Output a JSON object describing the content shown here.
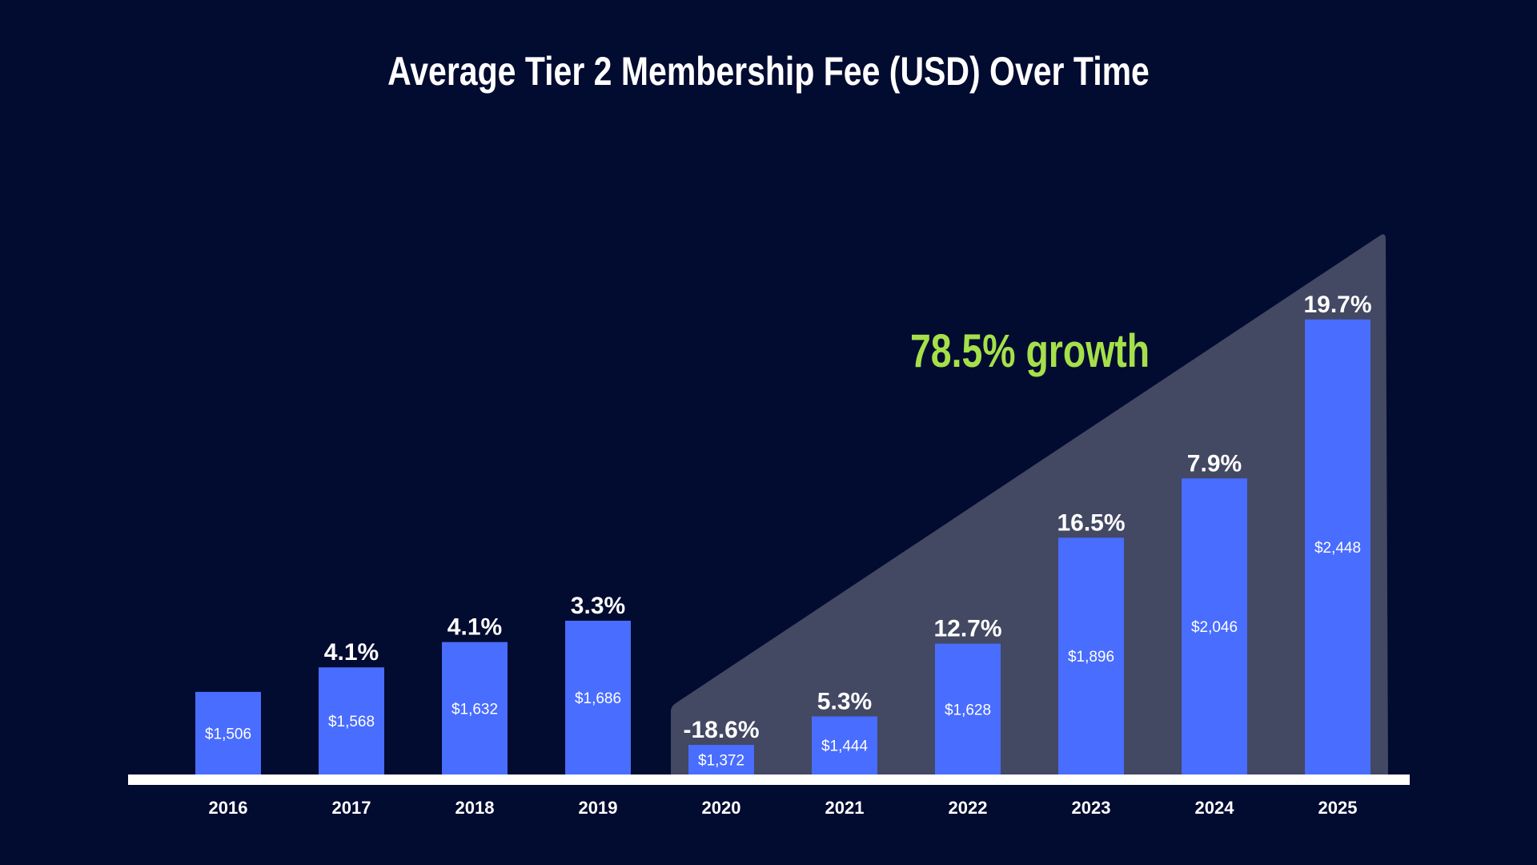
{
  "chart_data": {
    "type": "bar",
    "title": "Average Tier 2 Membership Fee (USD) Over Time",
    "categories": [
      "2016",
      "2017",
      "2018",
      "2019",
      "2020",
      "2021",
      "2022",
      "2023",
      "2024",
      "2025"
    ],
    "values": [
      1506,
      1568,
      1632,
      1686,
      1372,
      1444,
      1628,
      1896,
      2046,
      2448
    ],
    "value_labels": [
      "$1,506",
      "$1,568",
      "$1,632",
      "$1,686",
      "$1,372",
      "$1,444",
      "$1,628",
      "$1,896",
      "$2,046",
      "$2,448"
    ],
    "change_labels": [
      "",
      "4.1%",
      "4.1%",
      "3.3%",
      "-18.6%",
      "5.3%",
      "12.7%",
      "16.5%",
      "7.9%",
      "19.7%"
    ],
    "annotation": "78.5% growth",
    "xlabel": "",
    "ylabel": "",
    "grid": false,
    "colors": {
      "background": "#020b30",
      "bar": "#496dff",
      "highlight": "#434863",
      "annotation": "#a5e04a",
      "axis": "#ffffff",
      "text": "#ffffff"
    }
  }
}
